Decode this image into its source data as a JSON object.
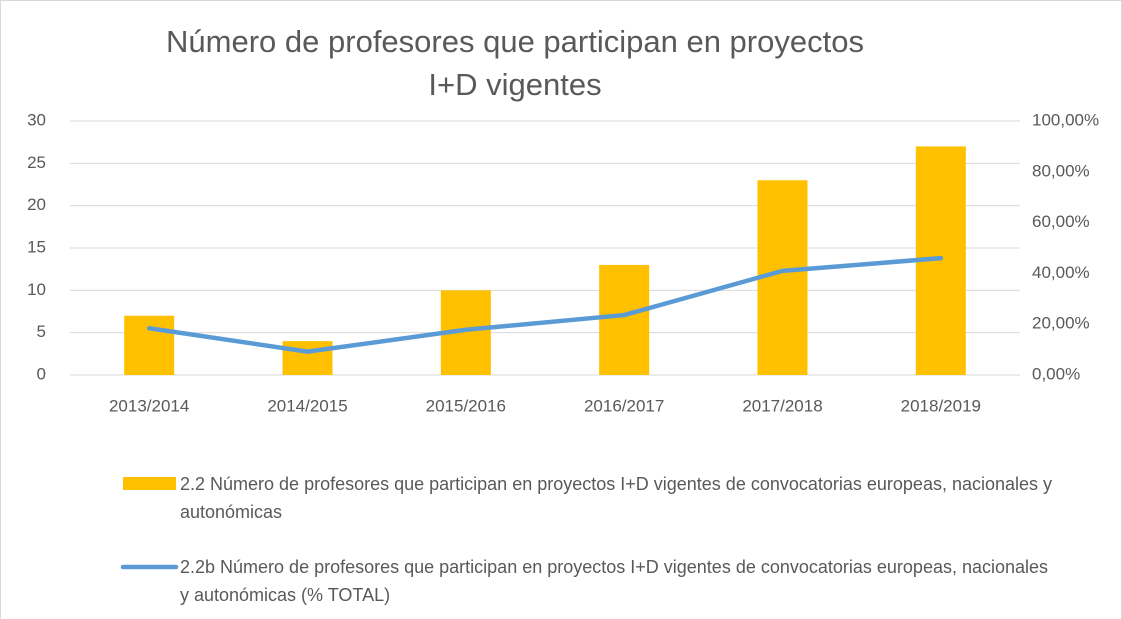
{
  "chart_data": {
    "type": "combo",
    "title": "Número de profesores que participan en proyectos I+D vigentes",
    "categories": [
      "2013/2014",
      "2014/2015",
      "2015/2016",
      "2016/2017",
      "2017/2018",
      "2018/2019"
    ],
    "series": [
      {
        "name": "2.2 Número de profesores que participan en proyectos I+D vigentes de convocatorias europeas, nacionales y autonómicas",
        "type": "bar",
        "color": "#ffc000",
        "values": [
          7,
          4,
          10,
          13,
          23,
          27
        ]
      },
      {
        "name": "2.2b Número de profesores que participan en proyectos I+D vigentes de convocatorias europeas, nacionales y autonómicas (% TOTAL)",
        "type": "line",
        "axis": "y2",
        "color": "#5b9bd5",
        "values": [
          18.4,
          9.2,
          17.8,
          23.6,
          41,
          46
        ]
      }
    ],
    "ylim": [
      0,
      30
    ],
    "yticks": [
      0,
      5,
      10,
      15,
      20,
      25,
      30
    ],
    "y2lim": [
      0,
      100
    ],
    "y2ticks": [
      {
        "value": 0,
        "label": "0,00%"
      },
      {
        "value": 20,
        "label": "20,00%"
      },
      {
        "value": 40,
        "label": "40,00%"
      },
      {
        "value": 60,
        "label": "60,00%"
      },
      {
        "value": 80,
        "label": "80,00%"
      },
      {
        "value": 100,
        "label": "100,00%"
      }
    ],
    "grid": true,
    "legend": "bottom"
  }
}
